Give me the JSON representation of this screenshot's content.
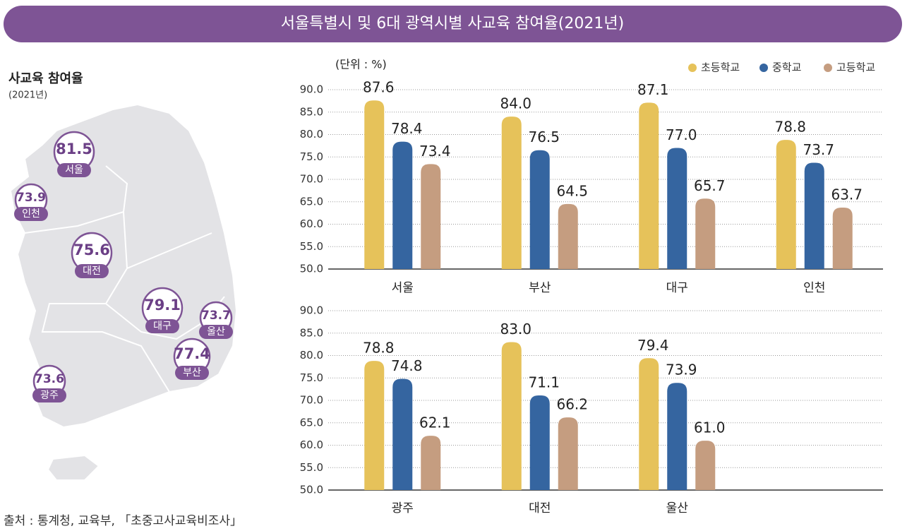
{
  "header": {
    "title": "서울특별시 및 6대 광역시별 사교육 참여율(2021년)"
  },
  "map": {
    "title": "사교육 참여율",
    "subtitle": "(2021년)",
    "regions": [
      {
        "name": "서울",
        "value": 81.5
      },
      {
        "name": "인천",
        "value": 73.9
      },
      {
        "name": "대전",
        "value": 75.6
      },
      {
        "name": "대구",
        "value": 79.1
      },
      {
        "name": "울산",
        "value": 73.7
      },
      {
        "name": "부산",
        "value": 77.4
      },
      {
        "name": "광주",
        "value": 73.6
      }
    ]
  },
  "chart_data": [
    {
      "type": "bar",
      "unit": "(단위 : %)",
      "legend": "top-right",
      "categories": [
        "서울",
        "부산",
        "대구",
        "인천"
      ],
      "series": [
        {
          "name": "초등학교",
          "color": "#e6c25a",
          "values": [
            87.6,
            84.0,
            87.1,
            78.8
          ],
          "value_labels": [
            "87.6",
            "84.0",
            "87.1",
            "78.8"
          ]
        },
        {
          "name": "중학교",
          "color": "#3565a0",
          "values": [
            78.4,
            76.5,
            77.0,
            73.7
          ],
          "value_labels": [
            "78.4",
            "76.5",
            "77.0",
            "73.7"
          ]
        },
        {
          "name": "고등학교",
          "color": "#c59d80",
          "values": [
            73.4,
            64.5,
            65.7,
            63.7
          ],
          "value_labels": [
            "73.4",
            "64.5",
            "65.7",
            "63.7"
          ]
        }
      ],
      "ylim": [
        50,
        90
      ],
      "yticks": [
        {
          "value": 50,
          "label": "50.0"
        },
        {
          "value": 55,
          "label": "55.0"
        },
        {
          "value": 60,
          "label": "60.0"
        },
        {
          "value": 65,
          "label": "65.0"
        },
        {
          "value": 70,
          "label": "70.0"
        },
        {
          "value": 75,
          "label": "75.0"
        },
        {
          "value": 80,
          "label": "80.0"
        },
        {
          "value": 85,
          "label": "85.0"
        },
        {
          "value": 90,
          "label": "90.0"
        }
      ],
      "grid": true
    },
    {
      "type": "bar",
      "categories": [
        "광주",
        "대전",
        "울산"
      ],
      "series": [
        {
          "color": "#e6c25a",
          "values": [
            78.8,
            83.0,
            79.4
          ],
          "value_labels": [
            "78.8",
            "83.0",
            "79.4"
          ]
        },
        {
          "color": "#3565a0",
          "values": [
            74.8,
            71.1,
            73.9
          ],
          "value_labels": [
            "74.8",
            "71.1",
            "73.9"
          ]
        },
        {
          "color": "#c59d80",
          "values": [
            62.1,
            66.2,
            61.0
          ],
          "value_labels": [
            "62.1",
            "66.2",
            "61.0"
          ]
        }
      ],
      "ylim": [
        50,
        90
      ],
      "yticks": [
        {
          "value": 50,
          "label": "50.0"
        },
        {
          "value": 55,
          "label": "55.0"
        },
        {
          "value": 60,
          "label": "60.0"
        },
        {
          "value": 65,
          "label": "65.0"
        },
        {
          "value": 70,
          "label": "70.0"
        },
        {
          "value": 75,
          "label": "75.0"
        },
        {
          "value": 80,
          "label": "80.0"
        },
        {
          "value": 85,
          "label": "85.0"
        },
        {
          "value": 90,
          "label": "90.0"
        }
      ],
      "grid": true
    }
  ],
  "source": "출처 : 통계청, 교육부, 「초중고사교육비조사」"
}
